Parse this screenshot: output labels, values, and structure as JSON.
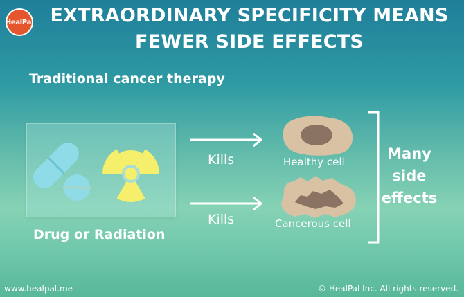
{
  "logo": {
    "text": "HealPal"
  },
  "title": "EXTRAORDINARY SPECIFICITY MEANS FEWER SIDE EFFECTS",
  "subtitle": "Traditional cancer therapy",
  "drug_label": "Drug or Radiation",
  "arrows": [
    {
      "label": "Kills"
    },
    {
      "label": "Kills"
    }
  ],
  "cells": [
    {
      "label": "Healthy cell"
    },
    {
      "label": "Cancerous cell"
    }
  ],
  "outcome": [
    "Many",
    "side",
    "effects"
  ],
  "footer": {
    "website": "www.healpal.me",
    "copyright": "© HealPal Inc. All rights reserved."
  },
  "colors": {
    "pill": "#8fdce8",
    "radiation": "#f6ef6b",
    "cell_body": "#d9c2a3",
    "cell_nucleus": "#8a7363",
    "logo": "#e4572e"
  }
}
